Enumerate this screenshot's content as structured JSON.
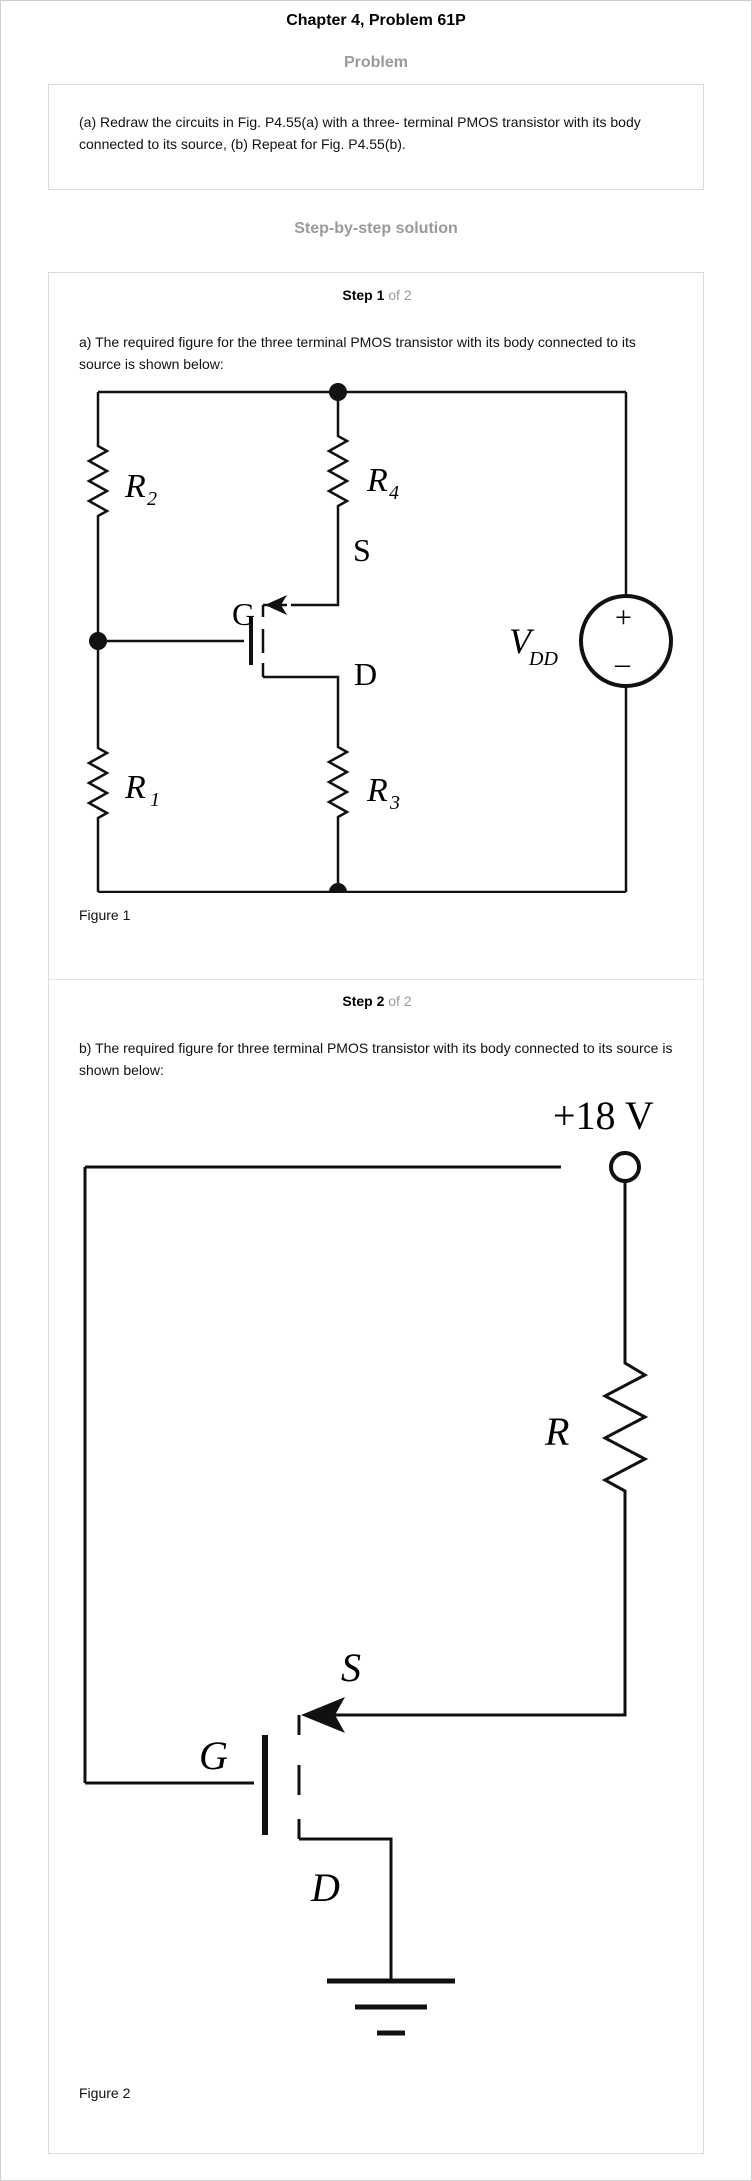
{
  "header": {
    "title": "Chapter 4, Problem 61P"
  },
  "problem": {
    "heading": "Problem",
    "text": "(a) Redraw the circuits in Fig. P4.55(a) with a three- terminal PMOS transistor with its body connected to its source, (b) Repeat for Fig. P4.55(b)."
  },
  "solution": {
    "heading": "Step-by-step solution",
    "steps": [
      {
        "label": "Step 1",
        "of": "of 2",
        "text": "a) The required figure for the three terminal PMOS transistor with its body connected to its source is shown below:",
        "figure": {
          "caption": "Figure 1",
          "labels": {
            "r2": "R",
            "r2_sub": "2",
            "r4": "R",
            "r4_sub": "4",
            "s": "S",
            "g": "G",
            "d": "D",
            "vdd": "V",
            "vdd_sub": "DD",
            "plus": "+",
            "minus": "–",
            "r1": "R",
            "r1_sub": "1",
            "r3": "R",
            "r3_sub": "3"
          }
        }
      },
      {
        "label": "Step 2",
        "of": "of 2",
        "text": "b) The required figure for three terminal PMOS transistor with its body connected to its source is shown below:",
        "figure": {
          "caption": "Figure 2",
          "labels": {
            "supply": "+18 V",
            "r": "R",
            "s": "S",
            "g": "G",
            "d": "D"
          }
        }
      }
    ]
  }
}
